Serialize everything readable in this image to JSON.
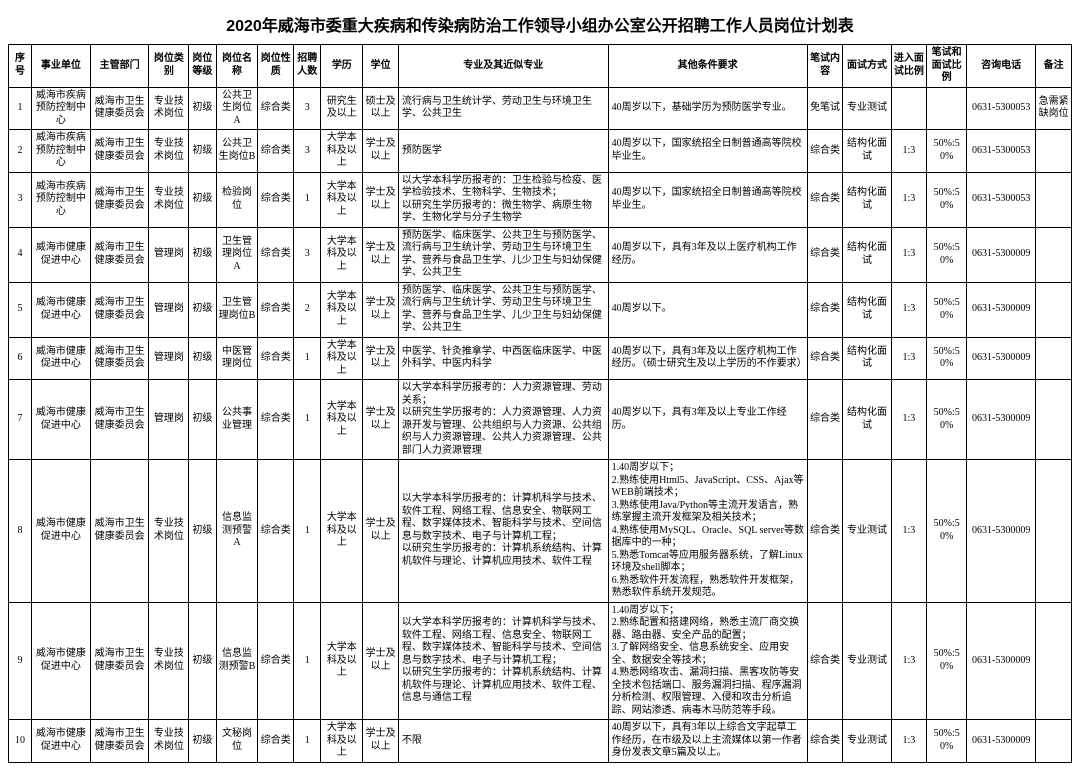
{
  "title": "2020年威海市委重大疾病和传染病防治工作领导小组办公室公开招聘工作人员岗位计划表",
  "columns": [
    "序号",
    "事业单位",
    "主管部门",
    "岗位类别",
    "岗位等级",
    "岗位名称",
    "岗位性质",
    "招聘人数",
    "学历",
    "学位",
    "专业及其近似专业",
    "其他条件要求",
    "笔试内容",
    "面试方式",
    "进入面试比例",
    "笔试和面试比例",
    "咨询电话",
    "备注"
  ],
  "rows": [
    {
      "seq": "1",
      "unit": "威海市疾病预防控制中心",
      "dept": "威海市卫生健康委员会",
      "ptype": "专业技术岗位",
      "plevel": "初级",
      "pname": "公共卫生岗位A",
      "pnat": "综合类",
      "num": "3",
      "edu": "研究生及以上",
      "deg": "硕士及以上",
      "major": "流行病与卫生统计学、劳动卫生与环境卫生学、公共卫生",
      "other": "40周岁以下，基础学历为预防医学专业。",
      "exam": "免笔试",
      "intv": "专业测试",
      "r1": "",
      "r2": "",
      "phone": "0631-5300053",
      "note": "急需紧缺岗位"
    },
    {
      "seq": "2",
      "unit": "威海市疾病预防控制中心",
      "dept": "威海市卫生健康委员会",
      "ptype": "专业技术岗位",
      "plevel": "初级",
      "pname": "公共卫生岗位B",
      "pnat": "综合类",
      "num": "3",
      "edu": "大学本科及以上",
      "deg": "学士及以上",
      "major": "预防医学",
      "other": "40周岁以下，国家统招全日制普通高等院校毕业生。",
      "exam": "综合类",
      "intv": "结构化面试",
      "r1": "1:3",
      "r2": "50%:50%",
      "phone": "0631-5300053",
      "note": ""
    },
    {
      "seq": "3",
      "unit": "威海市疾病预防控制中心",
      "dept": "威海市卫生健康委员会",
      "ptype": "专业技术岗位",
      "plevel": "初级",
      "pname": "检验岗位",
      "pnat": "综合类",
      "num": "1",
      "edu": "大学本科及以上",
      "deg": "学士及以上",
      "major": "以大学本科学历报考的：卫生检验与检疫、医学检验技术、生物科学、生物技术；\n以研究生学历报考的：微生物学、病原生物学、生物化学与分子生物学",
      "other": "40周岁以下，国家统招全日制普通高等院校毕业生。",
      "exam": "综合类",
      "intv": "结构化面试",
      "r1": "1:3",
      "r2": "50%:50%",
      "phone": "0631-5300053",
      "note": ""
    },
    {
      "seq": "4",
      "unit": "威海市健康促进中心",
      "dept": "威海市卫生健康委员会",
      "ptype": "管理岗",
      "plevel": "初级",
      "pname": "卫生管理岗位A",
      "pnat": "综合类",
      "num": "3",
      "edu": "大学本科及以上",
      "deg": "学士及以上",
      "major": "预防医学、临床医学、公共卫生与预防医学、流行病与卫生统计学、劳动卫生与环境卫生学、营养与食品卫生学、儿少卫生与妇幼保健学、公共卫生",
      "other": "40周岁以下，具有3年及以上医疗机构工作经历。",
      "exam": "综合类",
      "intv": "结构化面试",
      "r1": "1:3",
      "r2": "50%:50%",
      "phone": "0631-5300009",
      "note": ""
    },
    {
      "seq": "5",
      "unit": "威海市健康促进中心",
      "dept": "威海市卫生健康委员会",
      "ptype": "管理岗",
      "plevel": "初级",
      "pname": "卫生管理岗位B",
      "pnat": "综合类",
      "num": "2",
      "edu": "大学本科及以上",
      "deg": "学士及以上",
      "major": "预防医学、临床医学、公共卫生与预防医学、流行病与卫生统计学、劳动卫生与环境卫生学、营养与食品卫生学、儿少卫生与妇幼保健学、公共卫生",
      "other": "40周岁以下。",
      "exam": "综合类",
      "intv": "结构化面试",
      "r1": "1:3",
      "r2": "50%:50%",
      "phone": "0631-5300009",
      "note": ""
    },
    {
      "seq": "6",
      "unit": "威海市健康促进中心",
      "dept": "威海市卫生健康委员会",
      "ptype": "管理岗",
      "plevel": "初级",
      "pname": "中医管理岗位",
      "pnat": "综合类",
      "num": "1",
      "edu": "大学本科及以上",
      "deg": "学士及以上",
      "major": "中医学、针灸推拿学、中西医临床医学、中医外科学、中医内科学",
      "other": "40周岁以下，具有3年及以上医疗机构工作经历。（硕士研究生及以上学历的不作要求）",
      "exam": "综合类",
      "intv": "结构化面试",
      "r1": "1:3",
      "r2": "50%:50%",
      "phone": "0631-5300009",
      "note": ""
    },
    {
      "seq": "7",
      "unit": "威海市健康促进中心",
      "dept": "威海市卫生健康委员会",
      "ptype": "管理岗",
      "plevel": "初级",
      "pname": "公共事业管理",
      "pnat": "综合类",
      "num": "1",
      "edu": "大学本科及以上",
      "deg": "学士及以上",
      "major": "以大学本科学历报考的：人力资源管理、劳动关系；\n以研究生学历报考的：人力资源管理、人力资源开发与管理、公共组织与人力资源、公共组织与人力资源管理、公共人力资源管理、公共部门人力资源管理",
      "other": "40周岁以下，具有3年及以上专业工作经历。",
      "exam": "综合类",
      "intv": "结构化面试",
      "r1": "1:3",
      "r2": "50%:50%",
      "phone": "0631-5300009",
      "note": ""
    },
    {
      "seq": "8",
      "unit": "威海市健康促进中心",
      "dept": "威海市卫生健康委员会",
      "ptype": "专业技术岗位",
      "plevel": "初级",
      "pname": "信息监测预警A",
      "pnat": "综合类",
      "num": "1",
      "edu": "大学本科及以上",
      "deg": "学士及以上",
      "major": "以大学本科学历报考的：计算机科学与技术、软件工程、网络工程、信息安全、物联网工程、数字媒体技术、智能科学与技术、空间信息与数字技术、电子与计算机工程；\n以研究生学历报考的：计算机系统结构、计算机软件与理论、计算机应用技术、软件工程",
      "other": "1.40周岁以下；\n2.熟练使用Html5、JavaScript、CSS、Ajax等WEB前端技术；\n3.熟练使用Java/Python等主流开发语言，熟练掌握主流开发框架及相关技术；\n4.熟练使用MySQL、Oracle、SQL server等数据库中的一种；\n5.熟悉Tomcat等应用服务器系统，了解Linux环境及shell脚本；\n6.熟悉软件开发流程，熟悉软件开发框架，熟悉软件系统开发规范。",
      "exam": "综合类",
      "intv": "专业测试",
      "r1": "1:3",
      "r2": "50%:50%",
      "phone": "0631-5300009",
      "note": ""
    },
    {
      "seq": "9",
      "unit": "威海市健康促进中心",
      "dept": "威海市卫生健康委员会",
      "ptype": "专业技术岗位",
      "plevel": "初级",
      "pname": "信息监测预警B",
      "pnat": "综合类",
      "num": "1",
      "edu": "大学本科及以上",
      "deg": "学士及以上",
      "major": "以大学本科学历报考的：计算机科学与技术、软件工程、网络工程、信息安全、物联网工程、数字媒体技术、智能科学与技术、空间信息与数字技术、电子与计算机工程；\n以研究生学历报考的：计算机系统结构、计算机软件与理论、计算机应用技术、软件工程、信息与通信工程",
      "other": "1.40周岁以下；\n2.熟练配置和搭建网络，熟悉主流厂商交换器、路由器、安全产品的配置；\n3.了解网络安全、信息系统安全、应用安全、数据安全等技术；\n4.熟悉网络攻击、漏洞扫描、黑客攻防等安全技术包括端口、服务漏洞扫描、程序漏洞分析检测、权限管理、入侵和攻击分析追踪、网站渗透、病毒木马防范等手段。",
      "exam": "综合类",
      "intv": "专业测试",
      "r1": "1:3",
      "r2": "50%:50%",
      "phone": "0631-5300009",
      "note": ""
    },
    {
      "seq": "10",
      "unit": "威海市健康促进中心",
      "dept": "威海市卫生健康委员会",
      "ptype": "专业技术岗位",
      "plevel": "初级",
      "pname": "文秘岗位",
      "pnat": "综合类",
      "num": "1",
      "edu": "大学本科及以上",
      "deg": "学士及以上",
      "major": "不限",
      "other": "40周岁以下，具有3年以上综合文字起草工作经历，在市级及以上主流媒体以第一作者身份发表文章5篇及以上。",
      "exam": "综合类",
      "intv": "专业测试",
      "r1": "1:3",
      "r2": "50%:50%",
      "phone": "0631-5300009",
      "note": ""
    }
  ]
}
